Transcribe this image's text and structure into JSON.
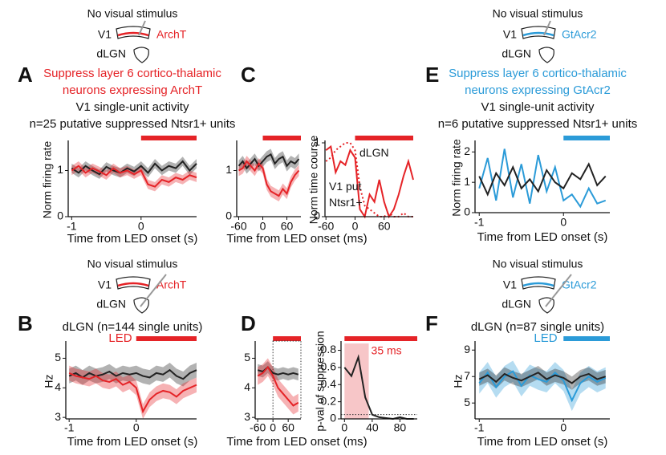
{
  "chart_data": [
    {
      "type": "line",
      "panel_label": "A",
      "stimulus_note": "No visual stimulus",
      "schematic": {
        "region_top": "V1",
        "region_bottom": "dLGN",
        "opsin": "ArchT",
        "probe": "V1"
      },
      "title": [
        "Suppress layer 6 cortico-thalamic",
        "neurons expressing ArchT"
      ],
      "subtitle": [
        "V1 single-unit activity",
        "n=25 putative suppressed Ntsr1+ units"
      ],
      "opsin_color": "#e52327",
      "ylabel": "Norm firing rate",
      "xlabel": "Time from LED onset (s)",
      "x": [
        -1,
        -0.9,
        -0.8,
        -0.7,
        -0.6,
        -0.5,
        -0.4,
        -0.3,
        -0.2,
        -0.1,
        0,
        0.1,
        0.2,
        0.3,
        0.4,
        0.5,
        0.6,
        0.7,
        0.8
      ],
      "series": [
        {
          "color": "#222222",
          "error": 0.1,
          "values": [
            1.05,
            0.95,
            1.1,
            1.0,
            0.92,
            1.08,
            1.0,
            0.95,
            1.05,
            0.98,
            1.1,
            0.95,
            1.15,
            1.0,
            1.1,
            1.05,
            1.2,
            1.0,
            1.15
          ]
        },
        {
          "color": "#e52327",
          "error": 0.1,
          "values": [
            1.0,
            1.1,
            0.95,
            1.05,
            0.98,
            0.9,
            1.05,
            0.95,
            1.0,
            0.92,
            1.0,
            0.7,
            0.65,
            0.8,
            0.75,
            0.85,
            0.8,
            0.9,
            0.85
          ]
        }
      ],
      "xlim": [
        -1.05,
        0.8
      ],
      "ylim": [
        0,
        1.6
      ],
      "xticks": [
        -1,
        0
      ],
      "yticks": [
        0,
        1
      ],
      "led_onset": 0,
      "led_color": "#e52327"
    },
    {
      "type": "line",
      "panel_label": "C",
      "xlabel": "Time from LED onset (ms)",
      "x": [
        -60,
        -50,
        -40,
        -30,
        -20,
        -10,
        0,
        10,
        20,
        30,
        40,
        50,
        60,
        70,
        80,
        90
      ],
      "series": [
        {
          "color": "#222222",
          "error": 0.12,
          "values": [
            1.1,
            1.2,
            1.05,
            1.15,
            1.25,
            1.1,
            1.2,
            1.3,
            1.35,
            1.15,
            1.25,
            1.3,
            1.1,
            1.2,
            1.15,
            1.25
          ]
        },
        {
          "color": "#e52327",
          "error": 0.12,
          "values": [
            1.0,
            1.05,
            1.2,
            1.1,
            1.0,
            1.15,
            1.05,
            0.7,
            0.55,
            0.5,
            0.45,
            0.6,
            0.5,
            0.75,
            0.9,
            1.0
          ]
        }
      ],
      "xlim": [
        -65,
        95
      ],
      "ylim": [
        0,
        1.6
      ],
      "xticks": [
        -60,
        0,
        60
      ],
      "yticks": [
        0,
        1
      ],
      "led_onset": 0,
      "led_color": "#e52327"
    },
    {
      "type": "line",
      "ylabel": "Norm time course",
      "x": [
        -60,
        -50,
        -40,
        -30,
        -20,
        -10,
        0,
        10,
        20,
        30,
        40,
        50,
        60,
        70,
        80,
        90,
        100,
        110,
        120
      ],
      "series": [
        {
          "name": "dLGN",
          "color": "#e52327",
          "style": "dotted",
          "values": [
            0.75,
            0.8,
            0.9,
            0.95,
            1.0,
            1.0,
            0.9,
            0.4,
            0.15,
            0.1,
            0.05,
            0.0,
            0.0,
            0.05,
            0.0,
            0.0,
            0.05,
            0.0,
            0.0
          ]
        },
        {
          "name": "V1 put Ntsr1+",
          "color": "#e52327",
          "style": "solid",
          "values": [
            0.9,
            0.95,
            0.6,
            0.75,
            0.7,
            0.9,
            0.8,
            0.1,
            0.0,
            0.3,
            0.2,
            0.5,
            0.2,
            0.0,
            0.1,
            0.3,
            0.55,
            0.75,
            0.5
          ]
        }
      ],
      "xlim": [
        -62,
        120
      ],
      "ylim": [
        0,
        1
      ],
      "xticks": [
        -60,
        0,
        60
      ],
      "yticks": [
        0,
        1
      ],
      "led_onset": 0,
      "led_color": "#e52327"
    },
    {
      "type": "line",
      "panel_label": "E",
      "stimulus_note": "No visual stimulus",
      "schematic": {
        "region_top": "V1",
        "region_bottom": "dLGN",
        "opsin": "GtAcr2",
        "probe": "V1"
      },
      "title": [
        "Suppress layer 6 cortico-thalamic",
        "neurons expressing GtAcr2"
      ],
      "subtitle": [
        "V1 single-unit activity",
        "n=6 putative suppressed Ntsr1+ units"
      ],
      "opsin_color": "#2b9bd8",
      "ylabel": "Norm firing rate",
      "xlabel": "Time from LED onset (s)",
      "x": [
        -1,
        -0.9,
        -0.8,
        -0.7,
        -0.6,
        -0.5,
        -0.4,
        -0.3,
        -0.2,
        -0.1,
        0,
        0.1,
        0.2,
        0.3,
        0.4,
        0.5
      ],
      "series": [
        {
          "color": "#2b9bd8",
          "values": [
            0.8,
            1.8,
            0.4,
            2.1,
            0.5,
            1.6,
            0.3,
            1.9,
            0.7,
            1.5,
            0.4,
            0.6,
            0.2,
            0.8,
            0.3,
            0.4
          ]
        },
        {
          "color": "#222222",
          "values": [
            1.2,
            0.6,
            1.3,
            0.9,
            1.5,
            0.8,
            1.1,
            0.7,
            1.4,
            1.0,
            0.8,
            1.3,
            1.1,
            1.6,
            0.9,
            1.2
          ]
        }
      ],
      "xlim": [
        -1.05,
        0.55
      ],
      "ylim": [
        0,
        2.3
      ],
      "xticks": [
        -1,
        0
      ],
      "yticks": [
        0,
        1,
        2
      ],
      "led_onset": 0,
      "led_color": "#2b9bd8"
    },
    {
      "type": "line",
      "panel_label": "B",
      "stimulus_note": "No visual stimulus",
      "schematic": {
        "region_top": "V1",
        "region_bottom": "dLGN",
        "opsin": "ArchT",
        "probe": "dLGN"
      },
      "subtitle": [
        "dLGN (n=144 single units)"
      ],
      "opsin_color": "#e52327",
      "ylabel": "Hz",
      "xlabel": "Time from LED onset (s)",
      "led_label": "LED",
      "x": [
        -1,
        -0.9,
        -0.8,
        -0.7,
        -0.6,
        -0.5,
        -0.4,
        -0.3,
        -0.2,
        -0.1,
        0,
        0.1,
        0.2,
        0.3,
        0.4,
        0.5,
        0.6,
        0.7,
        0.8,
        0.9
      ],
      "series": [
        {
          "color": "#222222",
          "error": 0.25,
          "values": [
            4.4,
            4.5,
            4.35,
            4.5,
            4.4,
            4.45,
            4.55,
            4.4,
            4.5,
            4.45,
            4.5,
            4.4,
            4.35,
            4.5,
            4.45,
            4.6,
            4.4,
            4.3,
            4.5,
            4.6
          ]
        },
        {
          "color": "#e52327",
          "error": 0.25,
          "values": [
            4.5,
            4.4,
            4.35,
            4.3,
            4.4,
            4.25,
            4.2,
            4.3,
            4.1,
            4.2,
            4.0,
            3.2,
            3.6,
            3.8,
            3.9,
            3.85,
            3.7,
            3.9,
            4.0,
            4.1
          ]
        }
      ],
      "xlim": [
        -1.05,
        0.9
      ],
      "ylim": [
        2.95,
        5.5
      ],
      "xticks": [
        -1,
        0
      ],
      "yticks": [
        3,
        4,
        5
      ],
      "led_onset": 0,
      "led_color": "#e52327"
    },
    {
      "type": "line",
      "panel_label": "D",
      "xlabel": "Time from LED onset (ms)",
      "onset_box": true,
      "x": [
        -60,
        -40,
        -20,
        0,
        20,
        40,
        60,
        80,
        100
      ],
      "series": [
        {
          "color": "#222222",
          "error": 0.2,
          "values": [
            4.6,
            4.55,
            4.7,
            4.5,
            4.45,
            4.5,
            4.45,
            4.5,
            4.45
          ]
        },
        {
          "color": "#e52327",
          "error": 0.3,
          "values": [
            4.4,
            4.5,
            4.7,
            4.4,
            4.0,
            3.8,
            3.6,
            3.4,
            3.5
          ]
        }
      ],
      "xlim": [
        -70,
        110
      ],
      "ylim": [
        2.95,
        5.5
      ],
      "xticks": [
        -60,
        0,
        60
      ],
      "yticks": [
        3,
        4,
        5
      ],
      "led_onset": 0,
      "led_color": "#e52327"
    },
    {
      "type": "line",
      "ylabel": "p-val of suppression",
      "x": [
        0,
        10,
        20,
        30,
        40,
        50,
        60,
        70,
        80,
        90,
        100
      ],
      "series": [
        {
          "color": "#222222",
          "values": [
            0.6,
            0.5,
            0.72,
            0.25,
            0.05,
            0.02,
            0.01,
            0.0,
            0.02,
            0.0,
            0.0
          ]
        }
      ],
      "sig_window": [
        0,
        35
      ],
      "window_label": "35 ms",
      "window_color": "#f7c6c8",
      "threshold": 0.05,
      "xlim": [
        -5,
        105
      ],
      "ylim": [
        0,
        0.88
      ],
      "xticks": [
        0,
        40,
        80
      ],
      "yticks": [
        0,
        0.2,
        0.4,
        0.6,
        0.8
      ],
      "led_onset": 0,
      "led_color": "#e52327"
    },
    {
      "type": "line",
      "panel_label": "F",
      "stimulus_note": "No visual stimulus",
      "schematic": {
        "region_top": "V1",
        "region_bottom": "dLGN",
        "opsin": "GtAcr2",
        "probe": "dLGN"
      },
      "subtitle": [
        "dLGN (n=87 single units)"
      ],
      "opsin_color": "#2b9bd8",
      "ylabel": "Hz",
      "xlabel": "Time from LED onset (s)",
      "led_label": "LED",
      "x": [
        -1,
        -0.9,
        -0.8,
        -0.7,
        -0.6,
        -0.5,
        -0.4,
        -0.3,
        -0.2,
        -0.1,
        0,
        0.1,
        0.2,
        0.3,
        0.4,
        0.5
      ],
      "series": [
        {
          "color": "#2b9bd8",
          "error": 0.8,
          "values": [
            6.5,
            7.3,
            6.2,
            7.0,
            7.4,
            6.3,
            7.1,
            6.8,
            6.6,
            7.3,
            6.7,
            5.2,
            6.5,
            7.0,
            6.6,
            6.9
          ]
        },
        {
          "color": "#222222",
          "error": 0.5,
          "values": [
            6.8,
            7.1,
            6.6,
            7.2,
            6.9,
            6.7,
            7.0,
            7.3,
            6.8,
            7.1,
            6.9,
            6.5,
            7.0,
            7.2,
            6.8,
            7.0
          ]
        }
      ],
      "xlim": [
        -1.05,
        0.55
      ],
      "ylim": [
        3.8,
        9.5
      ],
      "xticks": [
        -1,
        0
      ],
      "yticks": [
        5,
        7,
        9
      ],
      "led_onset": 0,
      "led_color": "#2b9bd8"
    }
  ]
}
